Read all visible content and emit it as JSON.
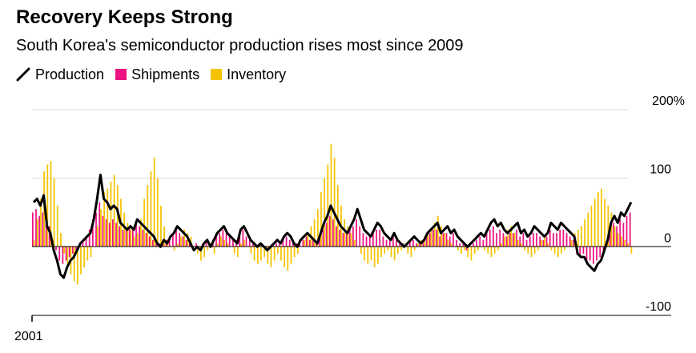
{
  "title": "Recovery Keeps Strong",
  "subtitle": "South Korea's semiconductor production rises most since 2009",
  "legend": [
    {
      "label": "Production",
      "type": "line",
      "color": "#000000"
    },
    {
      "label": "Shipments",
      "type": "bar",
      "color": "#ec1382"
    },
    {
      "label": "Inventory",
      "type": "bar",
      "color": "#f5c400"
    }
  ],
  "chart_data": {
    "type": "bar",
    "title": "Recovery Keeps Strong",
    "subtitle": "South Korea's semiconductor production rises most since 2009",
    "xlabel": "",
    "ylabel": "",
    "x_start_label": "2001",
    "ylim": [
      -100,
      200
    ],
    "y_ticks": [
      200,
      100,
      0,
      -100
    ],
    "y_tick_labels": [
      "200%",
      "100",
      "0",
      "-100"
    ],
    "grid": true,
    "legend_position": "top-left",
    "series": [
      {
        "name": "Production",
        "kind": "line",
        "color": "#000000",
        "values": [
          65,
          70,
          60,
          75,
          30,
          20,
          -5,
          -20,
          -40,
          -45,
          -30,
          -20,
          -15,
          -5,
          5,
          10,
          15,
          20,
          40,
          70,
          105,
          70,
          65,
          55,
          60,
          55,
          35,
          30,
          25,
          30,
          25,
          40,
          35,
          30,
          25,
          20,
          15,
          5,
          0,
          10,
          5,
          15,
          20,
          30,
          25,
          20,
          15,
          5,
          -5,
          0,
          -5,
          5,
          10,
          0,
          10,
          20,
          25,
          30,
          20,
          15,
          10,
          5,
          25,
          30,
          20,
          10,
          5,
          0,
          5,
          0,
          -5,
          0,
          5,
          10,
          5,
          15,
          20,
          15,
          5,
          0,
          10,
          15,
          20,
          15,
          10,
          5,
          20,
          35,
          45,
          60,
          50,
          40,
          30,
          25,
          20,
          30,
          40,
          55,
          40,
          25,
          20,
          15,
          25,
          35,
          30,
          20,
          15,
          10,
          20,
          10,
          5,
          0,
          5,
          10,
          15,
          10,
          5,
          10,
          20,
          25,
          30,
          35,
          20,
          25,
          30,
          20,
          25,
          15,
          10,
          5,
          0,
          5,
          10,
          15,
          20,
          15,
          25,
          35,
          40,
          30,
          35,
          25,
          20,
          25,
          30,
          35,
          20,
          25,
          15,
          20,
          30,
          25,
          20,
          15,
          20,
          35,
          30,
          25,
          35,
          30,
          25,
          20,
          15,
          -10,
          -15,
          -15,
          -25,
          -30,
          -35,
          -25,
          -20,
          -5,
          10,
          35,
          45,
          35,
          50,
          45,
          55,
          65
        ]
      },
      {
        "name": "Shipments",
        "kind": "bar",
        "color": "#ec1382",
        "values": [
          50,
          55,
          45,
          50,
          40,
          30,
          10,
          -5,
          -20,
          -25,
          -20,
          -15,
          -10,
          -5,
          5,
          10,
          15,
          25,
          40,
          50,
          65,
          45,
          40,
          35,
          40,
          35,
          30,
          25,
          25,
          30,
          25,
          35,
          30,
          25,
          20,
          15,
          10,
          5,
          5,
          10,
          10,
          15,
          20,
          25,
          20,
          15,
          10,
          5,
          0,
          5,
          0,
          5,
          10,
          5,
          10,
          20,
          20,
          25,
          20,
          15,
          10,
          10,
          20,
          25,
          15,
          10,
          5,
          0,
          5,
          0,
          -5,
          0,
          5,
          5,
          5,
          10,
          15,
          10,
          5,
          5,
          10,
          10,
          15,
          10,
          10,
          5,
          15,
          25,
          35,
          45,
          40,
          30,
          25,
          20,
          20,
          25,
          30,
          40,
          30,
          20,
          15,
          15,
          20,
          25,
          25,
          15,
          10,
          10,
          15,
          10,
          5,
          5,
          5,
          10,
          10,
          5,
          5,
          10,
          15,
          20,
          25,
          25,
          15,
          20,
          20,
          15,
          20,
          10,
          5,
          5,
          -5,
          5,
          5,
          10,
          15,
          10,
          20,
          25,
          30,
          20,
          25,
          20,
          15,
          20,
          20,
          25,
          15,
          20,
          10,
          15,
          20,
          20,
          15,
          10,
          15,
          25,
          20,
          20,
          25,
          25,
          20,
          15,
          10,
          -10,
          -15,
          -10,
          -20,
          -20,
          -25,
          -20,
          -15,
          -5,
          5,
          25,
          35,
          30,
          40,
          35,
          45,
          50
        ]
      },
      {
        "name": "Inventory",
        "kind": "bar",
        "color": "#f5c400",
        "values": [
          10,
          40,
          70,
          110,
          120,
          125,
          100,
          60,
          20,
          -10,
          -30,
          -40,
          -50,
          -55,
          -40,
          -30,
          -20,
          -15,
          0,
          30,
          55,
          80,
          85,
          95,
          105,
          90,
          70,
          50,
          35,
          25,
          15,
          20,
          40,
          70,
          90,
          110,
          130,
          100,
          60,
          30,
          10,
          0,
          -5,
          5,
          15,
          25,
          20,
          15,
          0,
          -10,
          -20,
          -15,
          -5,
          0,
          -10,
          5,
          15,
          10,
          5,
          0,
          -10,
          -15,
          5,
          10,
          0,
          -10,
          -20,
          -25,
          -20,
          -15,
          -25,
          -30,
          -20,
          -10,
          -20,
          -30,
          -35,
          -25,
          -15,
          -10,
          0,
          10,
          20,
          30,
          40,
          55,
          80,
          100,
          120,
          150,
          130,
          90,
          60,
          40,
          30,
          20,
          10,
          0,
          -10,
          -20,
          -25,
          -20,
          -30,
          -25,
          -15,
          -10,
          -5,
          -15,
          -20,
          -10,
          -5,
          0,
          -10,
          -15,
          -5,
          5,
          10,
          15,
          20,
          25,
          35,
          45,
          30,
          20,
          10,
          5,
          0,
          -5,
          -10,
          -5,
          -15,
          -20,
          -10,
          -5,
          0,
          -5,
          -10,
          -15,
          -10,
          -5,
          5,
          15,
          25,
          30,
          20,
          10,
          5,
          -5,
          -10,
          -15,
          -10,
          -5,
          10,
          15,
          5,
          -5,
          -10,
          -15,
          -10,
          -5,
          0,
          10,
          20,
          25,
          30,
          40,
          50,
          60,
          70,
          80,
          85,
          70,
          60,
          50,
          30,
          20,
          15,
          10,
          5,
          -10,
          -15,
          -20
        ]
      }
    ]
  }
}
